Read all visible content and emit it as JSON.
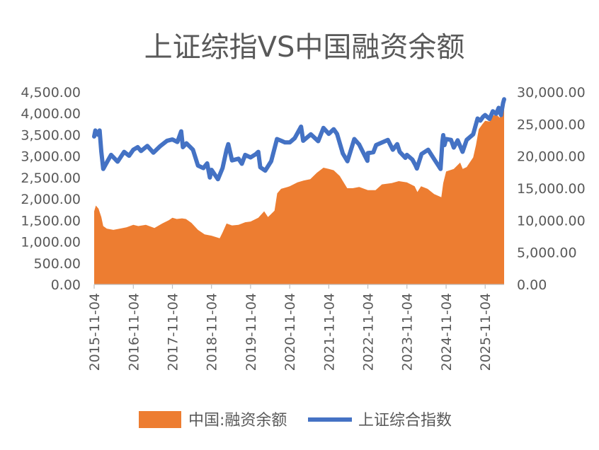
{
  "chart_data": {
    "type": "line",
    "title": "上证综指VS中国融资余额",
    "x_axis": {
      "ticks": [
        "2015-11-04",
        "2016-11-04",
        "2017-11-04",
        "2018-11-04",
        "2019-11-04",
        "2020-11-04",
        "2021-11-04",
        "2022-11-04",
        "2023-11-04",
        "2024-11-04",
        "2025-11-04"
      ],
      "range": [
        "2015-11-04",
        "2026-04-30"
      ]
    },
    "y_left": {
      "range": [
        0,
        4500
      ],
      "ticks": [
        "0.00",
        "500.00",
        "1,000.00",
        "1,500.00",
        "2,000.00",
        "2,500.00",
        "3,000.00",
        "3,500.00",
        "4,000.00",
        "4,500.00"
      ]
    },
    "y_right": {
      "range": [
        0,
        30000
      ],
      "ticks": [
        "0.00",
        "5,000.00",
        "10,000.00",
        "15,000.00",
        "20,000.00",
        "25,000.00",
        "30,000.00"
      ]
    },
    "legend_position": "bottom",
    "grid": false,
    "series": [
      {
        "name": "中国:融资余额",
        "kind": "area",
        "axis": "right",
        "color": "#ED7D31",
        "points": [
          [
            "2015-11-04",
            11400
          ],
          [
            "2015-11-20",
            12300
          ],
          [
            "2015-12-15",
            11800
          ],
          [
            "2016-01-10",
            10500
          ],
          [
            "2016-01-28",
            9100
          ],
          [
            "2016-03-01",
            8700
          ],
          [
            "2016-05-01",
            8500
          ],
          [
            "2016-07-01",
            8700
          ],
          [
            "2016-09-01",
            8900
          ],
          [
            "2016-11-04",
            9300
          ],
          [
            "2016-12-20",
            9100
          ],
          [
            "2017-03-01",
            9300
          ],
          [
            "2017-05-20",
            8800
          ],
          [
            "2017-08-01",
            9500
          ],
          [
            "2017-10-01",
            10000
          ],
          [
            "2017-11-04",
            10400
          ],
          [
            "2017-12-15",
            10200
          ],
          [
            "2018-02-01",
            10300
          ],
          [
            "2018-03-10",
            10200
          ],
          [
            "2018-05-01",
            9600
          ],
          [
            "2018-07-01",
            8500
          ],
          [
            "2018-09-01",
            7800
          ],
          [
            "2018-11-04",
            7600
          ],
          [
            "2019-01-20",
            7200
          ],
          [
            "2019-02-15",
            8100
          ],
          [
            "2019-03-25",
            9500
          ],
          [
            "2019-05-15",
            9200
          ],
          [
            "2019-07-15",
            9300
          ],
          [
            "2019-09-15",
            9700
          ],
          [
            "2019-11-04",
            9800
          ],
          [
            "2020-01-15",
            10400
          ],
          [
            "2020-03-10",
            11400
          ],
          [
            "2020-04-15",
            10500
          ],
          [
            "2020-06-15",
            11500
          ],
          [
            "2020-07-10",
            14200
          ],
          [
            "2020-08-15",
            14900
          ],
          [
            "2020-10-15",
            15200
          ],
          [
            "2020-11-04",
            15300
          ],
          [
            "2021-01-15",
            15900
          ],
          [
            "2021-03-15",
            16200
          ],
          [
            "2021-05-15",
            16400
          ],
          [
            "2021-07-15",
            17400
          ],
          [
            "2021-09-15",
            18200
          ],
          [
            "2021-11-04",
            18000
          ],
          [
            "2021-12-20",
            17800
          ],
          [
            "2022-02-15",
            16900
          ],
          [
            "2022-04-25",
            15000
          ],
          [
            "2022-06-15",
            15000
          ],
          [
            "2022-08-15",
            15200
          ],
          [
            "2022-11-04",
            14700
          ],
          [
            "2023-01-15",
            14700
          ],
          [
            "2023-03-15",
            15600
          ],
          [
            "2023-06-15",
            15800
          ],
          [
            "2023-08-20",
            16100
          ],
          [
            "2023-11-04",
            15900
          ],
          [
            "2024-01-15",
            15300
          ],
          [
            "2024-02-10",
            14400
          ],
          [
            "2024-03-15",
            15300
          ],
          [
            "2024-05-15",
            14900
          ],
          [
            "2024-07-15",
            14100
          ],
          [
            "2024-09-20",
            13600
          ],
          [
            "2024-10-08",
            15800
          ],
          [
            "2024-11-04",
            17600
          ],
          [
            "2025-01-15",
            18000
          ],
          [
            "2025-03-15",
            19000
          ],
          [
            "2025-04-08",
            18000
          ],
          [
            "2025-05-15",
            18300
          ],
          [
            "2025-07-15",
            19800
          ],
          [
            "2025-08-10",
            21700
          ],
          [
            "2025-09-05",
            24200
          ],
          [
            "2025-10-10",
            25000
          ],
          [
            "2025-11-04",
            25500
          ],
          [
            "2025-12-15",
            25400
          ],
          [
            "2026-01-15",
            26300
          ],
          [
            "2026-02-15",
            26500
          ],
          [
            "2026-03-20",
            26000
          ],
          [
            "2026-04-10",
            26900
          ],
          [
            "2026-04-30",
            27400
          ]
        ]
      },
      {
        "name": "上证综合指数",
        "kind": "line",
        "axis": "left",
        "color": "#4472C4",
        "points": [
          [
            "2015-11-04",
            3460
          ],
          [
            "2015-11-15",
            3600
          ],
          [
            "2015-12-10",
            3500
          ],
          [
            "2015-12-25",
            3600
          ],
          [
            "2016-01-10",
            3100
          ],
          [
            "2016-01-28",
            2700
          ],
          [
            "2016-02-25",
            2830
          ],
          [
            "2016-04-10",
            3030
          ],
          [
            "2016-06-10",
            2870
          ],
          [
            "2016-08-10",
            3100
          ],
          [
            "2016-09-25",
            3010
          ],
          [
            "2016-11-04",
            3150
          ],
          [
            "2016-12-15",
            3210
          ],
          [
            "2017-01-15",
            3120
          ],
          [
            "2017-03-15",
            3240
          ],
          [
            "2017-05-10",
            3080
          ],
          [
            "2017-07-15",
            3240
          ],
          [
            "2017-09-15",
            3360
          ],
          [
            "2017-11-04",
            3390
          ],
          [
            "2017-12-20",
            3330
          ],
          [
            "2018-01-25",
            3580
          ],
          [
            "2018-02-10",
            3210
          ],
          [
            "2018-03-15",
            3300
          ],
          [
            "2018-05-15",
            3150
          ],
          [
            "2018-07-01",
            2780
          ],
          [
            "2018-08-20",
            2720
          ],
          [
            "2018-09-25",
            2830
          ],
          [
            "2018-10-20",
            2500
          ],
          [
            "2018-11-04",
            2680
          ],
          [
            "2019-01-03",
            2460
          ],
          [
            "2019-02-15",
            2720
          ],
          [
            "2019-03-25",
            3150
          ],
          [
            "2019-04-10",
            3280
          ],
          [
            "2019-05-15",
            2900
          ],
          [
            "2019-07-15",
            2940
          ],
          [
            "2019-08-15",
            2820
          ],
          [
            "2019-09-15",
            3030
          ],
          [
            "2019-11-04",
            2970
          ],
          [
            "2019-12-25",
            3050
          ],
          [
            "2020-01-15",
            3100
          ],
          [
            "2020-02-03",
            2740
          ],
          [
            "2020-03-20",
            2660
          ],
          [
            "2020-05-15",
            2880
          ],
          [
            "2020-07-08",
            3400
          ],
          [
            "2020-08-15",
            3360
          ],
          [
            "2020-09-20",
            3320
          ],
          [
            "2020-11-04",
            3320
          ],
          [
            "2020-12-20",
            3420
          ],
          [
            "2021-02-18",
            3690
          ],
          [
            "2021-03-10",
            3360
          ],
          [
            "2021-05-20",
            3510
          ],
          [
            "2021-07-28",
            3350
          ],
          [
            "2021-09-15",
            3660
          ],
          [
            "2021-11-04",
            3520
          ],
          [
            "2021-12-20",
            3630
          ],
          [
            "2022-01-20",
            3520
          ],
          [
            "2022-03-15",
            3060
          ],
          [
            "2022-04-27",
            2880
          ],
          [
            "2022-06-30",
            3400
          ],
          [
            "2022-08-15",
            3270
          ],
          [
            "2022-10-31",
            2890
          ],
          [
            "2022-11-04",
            3070
          ],
          [
            "2022-12-25",
            3090
          ],
          [
            "2023-01-20",
            3260
          ],
          [
            "2023-05-10",
            3380
          ],
          [
            "2023-06-25",
            3150
          ],
          [
            "2023-08-05",
            3280
          ],
          [
            "2023-08-28",
            3100
          ],
          [
            "2023-10-20",
            2960
          ],
          [
            "2023-11-04",
            3030
          ],
          [
            "2023-12-25",
            2920
          ],
          [
            "2024-01-20",
            2800
          ],
          [
            "2024-02-05",
            2710
          ],
          [
            "2024-03-20",
            3050
          ],
          [
            "2024-05-20",
            3150
          ],
          [
            "2024-07-10",
            2950
          ],
          [
            "2024-09-13",
            2700
          ],
          [
            "2024-09-30",
            3340
          ],
          [
            "2024-10-08",
            3490
          ],
          [
            "2024-10-20",
            3260
          ],
          [
            "2024-11-04",
            3400
          ],
          [
            "2024-12-20",
            3380
          ],
          [
            "2025-01-15",
            3200
          ],
          [
            "2025-02-20",
            3370
          ],
          [
            "2025-04-07",
            3100
          ],
          [
            "2025-05-15",
            3380
          ],
          [
            "2025-07-15",
            3510
          ],
          [
            "2025-08-25",
            3880
          ],
          [
            "2025-09-20",
            3830
          ],
          [
            "2025-10-15",
            3920
          ],
          [
            "2025-11-04",
            3960
          ],
          [
            "2025-12-15",
            3870
          ],
          [
            "2026-01-15",
            4050
          ],
          [
            "2026-02-15",
            3990
          ],
          [
            "2026-03-10",
            4130
          ],
          [
            "2026-04-01",
            3960
          ],
          [
            "2026-04-20",
            4240
          ],
          [
            "2026-04-30",
            4330
          ]
        ]
      }
    ]
  }
}
